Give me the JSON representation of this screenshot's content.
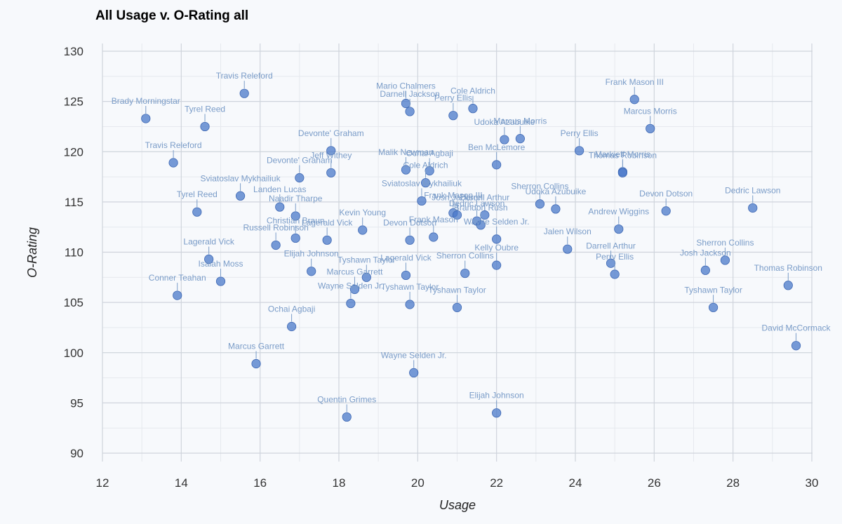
{
  "chart_data": {
    "type": "scatter",
    "title": "All Usage v. O-Rating all",
    "xlabel": "Usage",
    "ylabel": "O-Rating",
    "xlim": [
      12,
      30
    ],
    "ylim": [
      90,
      130
    ],
    "xticks": [
      12,
      14,
      16,
      18,
      20,
      22,
      24,
      26,
      28,
      30
    ],
    "yticks": [
      90,
      95,
      100,
      105,
      110,
      115,
      120,
      125,
      130
    ],
    "grid": true,
    "colors": {
      "point": "#4a78c9",
      "label": "#7a9cc8",
      "grid_major": "#cfd4dc",
      "grid_minor": "#e6e9ee",
      "background": "#f7f9fc"
    },
    "points": [
      {
        "label": "Brady Morningstar",
        "x": 13.1,
        "y": 123.3
      },
      {
        "label": "Tyrel Reed",
        "x": 14.6,
        "y": 122.5
      },
      {
        "label": "Travis Releford",
        "x": 15.6,
        "y": 125.8
      },
      {
        "label": "Travis Releford",
        "x": 13.8,
        "y": 118.9
      },
      {
        "label": "Tyrel Reed",
        "x": 14.4,
        "y": 114.0
      },
      {
        "label": "Sviatoslav Mykhailiuk",
        "x": 15.5,
        "y": 115.6
      },
      {
        "label": "Landen Lucas",
        "x": 16.5,
        "y": 114.5
      },
      {
        "label": "Naadir Tharpe",
        "x": 16.9,
        "y": 113.6
      },
      {
        "label": "Devonte' Graham",
        "x": 17.0,
        "y": 117.4
      },
      {
        "label": "Devonte' Graham",
        "x": 17.8,
        "y": 120.1
      },
      {
        "label": "Jeff Withey",
        "x": 17.8,
        "y": 117.9
      },
      {
        "label": "Christian Braun",
        "x": 16.9,
        "y": 111.4
      },
      {
        "label": "Russell Robinson",
        "x": 16.4,
        "y": 110.7
      },
      {
        "label": "Lagerald Vick",
        "x": 17.7,
        "y": 111.2
      },
      {
        "label": "Lagerald Vick",
        "x": 14.7,
        "y": 109.3
      },
      {
        "label": "Isaiah Moss",
        "x": 15.0,
        "y": 107.1
      },
      {
        "label": "Conner Teahan",
        "x": 13.9,
        "y": 105.7
      },
      {
        "label": "Elijah Johnson",
        "x": 17.3,
        "y": 108.1
      },
      {
        "label": "Kevin Young",
        "x": 18.6,
        "y": 112.2
      },
      {
        "label": "Mario Chalmers",
        "x": 19.7,
        "y": 124.8
      },
      {
        "label": "Darnell Jackson",
        "x": 19.8,
        "y": 124.0
      },
      {
        "label": "Perry Ellis",
        "x": 20.9,
        "y": 123.6
      },
      {
        "label": "Cole Aldrich",
        "x": 21.4,
        "y": 124.3
      },
      {
        "label": "Malik Newman",
        "x": 19.7,
        "y": 118.2
      },
      {
        "label": "Ochai Agbaji",
        "x": 20.3,
        "y": 118.1
      },
      {
        "label": "Cole Aldrich",
        "x": 20.2,
        "y": 116.9
      },
      {
        "label": "Sviatoslav Mykhailiuk",
        "x": 20.1,
        "y": 115.1
      },
      {
        "label": "Frank Mason III",
        "x": 20.9,
        "y": 113.9
      },
      {
        "label": "Josh Jackson",
        "x": 21.0,
        "y": 113.7
      },
      {
        "label": "Dedric Lawson",
        "x": 21.5,
        "y": 113.1
      },
      {
        "label": "Brandon Rush",
        "x": 21.6,
        "y": 112.7
      },
      {
        "label": "Darrell Arthur",
        "x": 21.7,
        "y": 113.7
      },
      {
        "label": "Devon Dotson",
        "x": 19.8,
        "y": 111.2
      },
      {
        "label": "Frank Mason",
        "x": 20.4,
        "y": 111.5
      },
      {
        "label": "Wayne Selden Jr.",
        "x": 22.0,
        "y": 111.3
      },
      {
        "label": "Ben McLemore",
        "x": 22.0,
        "y": 118.7
      },
      {
        "label": "Udoka Azubuike",
        "x": 22.2,
        "y": 121.2
      },
      {
        "label": "Marcus Morris",
        "x": 22.6,
        "y": 121.3
      },
      {
        "label": "Perry Ellis",
        "x": 24.1,
        "y": 120.1
      },
      {
        "label": "Sherron Collins",
        "x": 23.1,
        "y": 114.8
      },
      {
        "label": "Udoka Azubuike",
        "x": 23.5,
        "y": 114.3
      },
      {
        "label": "Lagerald Vick",
        "x": 19.7,
        "y": 107.7
      },
      {
        "label": "Tyshawn Taylor",
        "x": 18.7,
        "y": 107.5
      },
      {
        "label": "Marcus Garrett",
        "x": 18.4,
        "y": 106.3
      },
      {
        "label": "Wayne Selden Jr.",
        "x": 18.3,
        "y": 104.9
      },
      {
        "label": "Tyshawn Taylor",
        "x": 19.8,
        "y": 104.8
      },
      {
        "label": "Tyshawn Taylor",
        "x": 21.0,
        "y": 104.5
      },
      {
        "label": "Sherron Collins",
        "x": 21.2,
        "y": 107.9
      },
      {
        "label": "Kelly Oubre",
        "x": 22.0,
        "y": 108.7
      },
      {
        "label": "Jalen Wilson",
        "x": 23.8,
        "y": 110.3
      },
      {
        "label": "Ochai Agbaji",
        "x": 16.8,
        "y": 102.6
      },
      {
        "label": "Marcus Garrett",
        "x": 15.9,
        "y": 98.9
      },
      {
        "label": "Wayne Selden Jr.",
        "x": 19.9,
        "y": 98.0
      },
      {
        "label": "Quentin Grimes",
        "x": 18.2,
        "y": 93.6
      },
      {
        "label": "Elijah Johnson",
        "x": 22.0,
        "y": 94.0
      },
      {
        "label": "Frank Mason III",
        "x": 25.5,
        "y": 125.2
      },
      {
        "label": "Marcus Morris",
        "x": 25.9,
        "y": 122.3
      },
      {
        "label": "Markieff Morris",
        "x": 25.2,
        "y": 118.0
      },
      {
        "label": "Thomas Robinson",
        "x": 25.2,
        "y": 117.9
      },
      {
        "label": "Andrew Wiggins",
        "x": 25.1,
        "y": 112.3
      },
      {
        "label": "Darrell Arthur",
        "x": 24.9,
        "y": 108.9
      },
      {
        "label": "Perry Ellis",
        "x": 25.0,
        "y": 107.8
      },
      {
        "label": "Devon Dotson",
        "x": 26.3,
        "y": 114.1
      },
      {
        "label": "Dedric Lawson",
        "x": 28.5,
        "y": 114.4
      },
      {
        "label": "Josh Jackson",
        "x": 27.3,
        "y": 108.2
      },
      {
        "label": "Sherron Collins",
        "x": 27.8,
        "y": 109.2
      },
      {
        "label": "Tyshawn Taylor",
        "x": 27.5,
        "y": 104.5
      },
      {
        "label": "Thomas Robinson",
        "x": 29.4,
        "y": 106.7
      },
      {
        "label": "David McCormack",
        "x": 29.6,
        "y": 100.7
      }
    ]
  }
}
